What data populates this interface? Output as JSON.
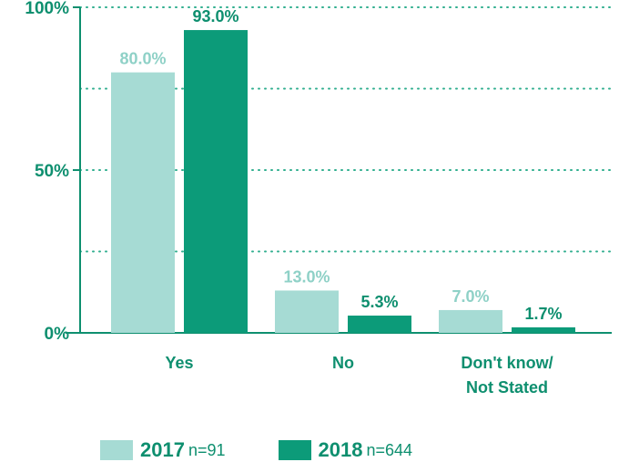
{
  "colors": {
    "series_2017": "#a6dbd4",
    "series_2018": "#0c9b79",
    "accent_text": "#0e8f6f"
  },
  "chart_data": {
    "type": "bar",
    "categories": [
      "Yes",
      "No",
      "Don't know/ Not Stated"
    ],
    "category_lines": [
      [
        "Yes"
      ],
      [
        "No"
      ],
      [
        "Don't know/",
        "Not Stated"
      ]
    ],
    "series": [
      {
        "name": "2017",
        "values": [
          80.0,
          13.0,
          7.0
        ],
        "labels": [
          "80.0%",
          "13.0%",
          "7.0%"
        ],
        "color": "#a6dbd4",
        "label_color": "#8fd1c7"
      },
      {
        "name": "2018",
        "values": [
          93.0,
          5.3,
          1.7
        ],
        "labels": [
          "93.0%",
          "5.3%",
          "1.7%"
        ],
        "color": "#0c9b79",
        "label_color": "#0e8f6f"
      }
    ],
    "yticks": [
      {
        "value": 0,
        "label": "0%"
      },
      {
        "value": 50,
        "label": "50%"
      },
      {
        "value": 100,
        "label": "100%"
      }
    ],
    "ylim": [
      0,
      100
    ],
    "gridlines": [
      25,
      50,
      75,
      100
    ],
    "grid": true,
    "legend_position": "bottom-left"
  },
  "legend": {
    "items": [
      {
        "year": "2017",
        "n": "n=91"
      },
      {
        "year": "2018",
        "n": "n=644"
      }
    ]
  }
}
